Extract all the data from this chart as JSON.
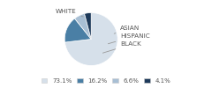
{
  "labels": [
    "WHITE",
    "ASIAN",
    "HISPANIC",
    "BLACK"
  ],
  "values": [
    73.1,
    16.2,
    6.6,
    4.1
  ],
  "colors": [
    "#d6e0ea",
    "#4a7fa5",
    "#a8bfd4",
    "#1e3a5a"
  ],
  "legend_labels": [
    "73.1%",
    "16.2%",
    "6.6%",
    "4.1%"
  ],
  "startangle": 90,
  "label_fontsize": 5.2,
  "legend_fontsize": 5.0
}
